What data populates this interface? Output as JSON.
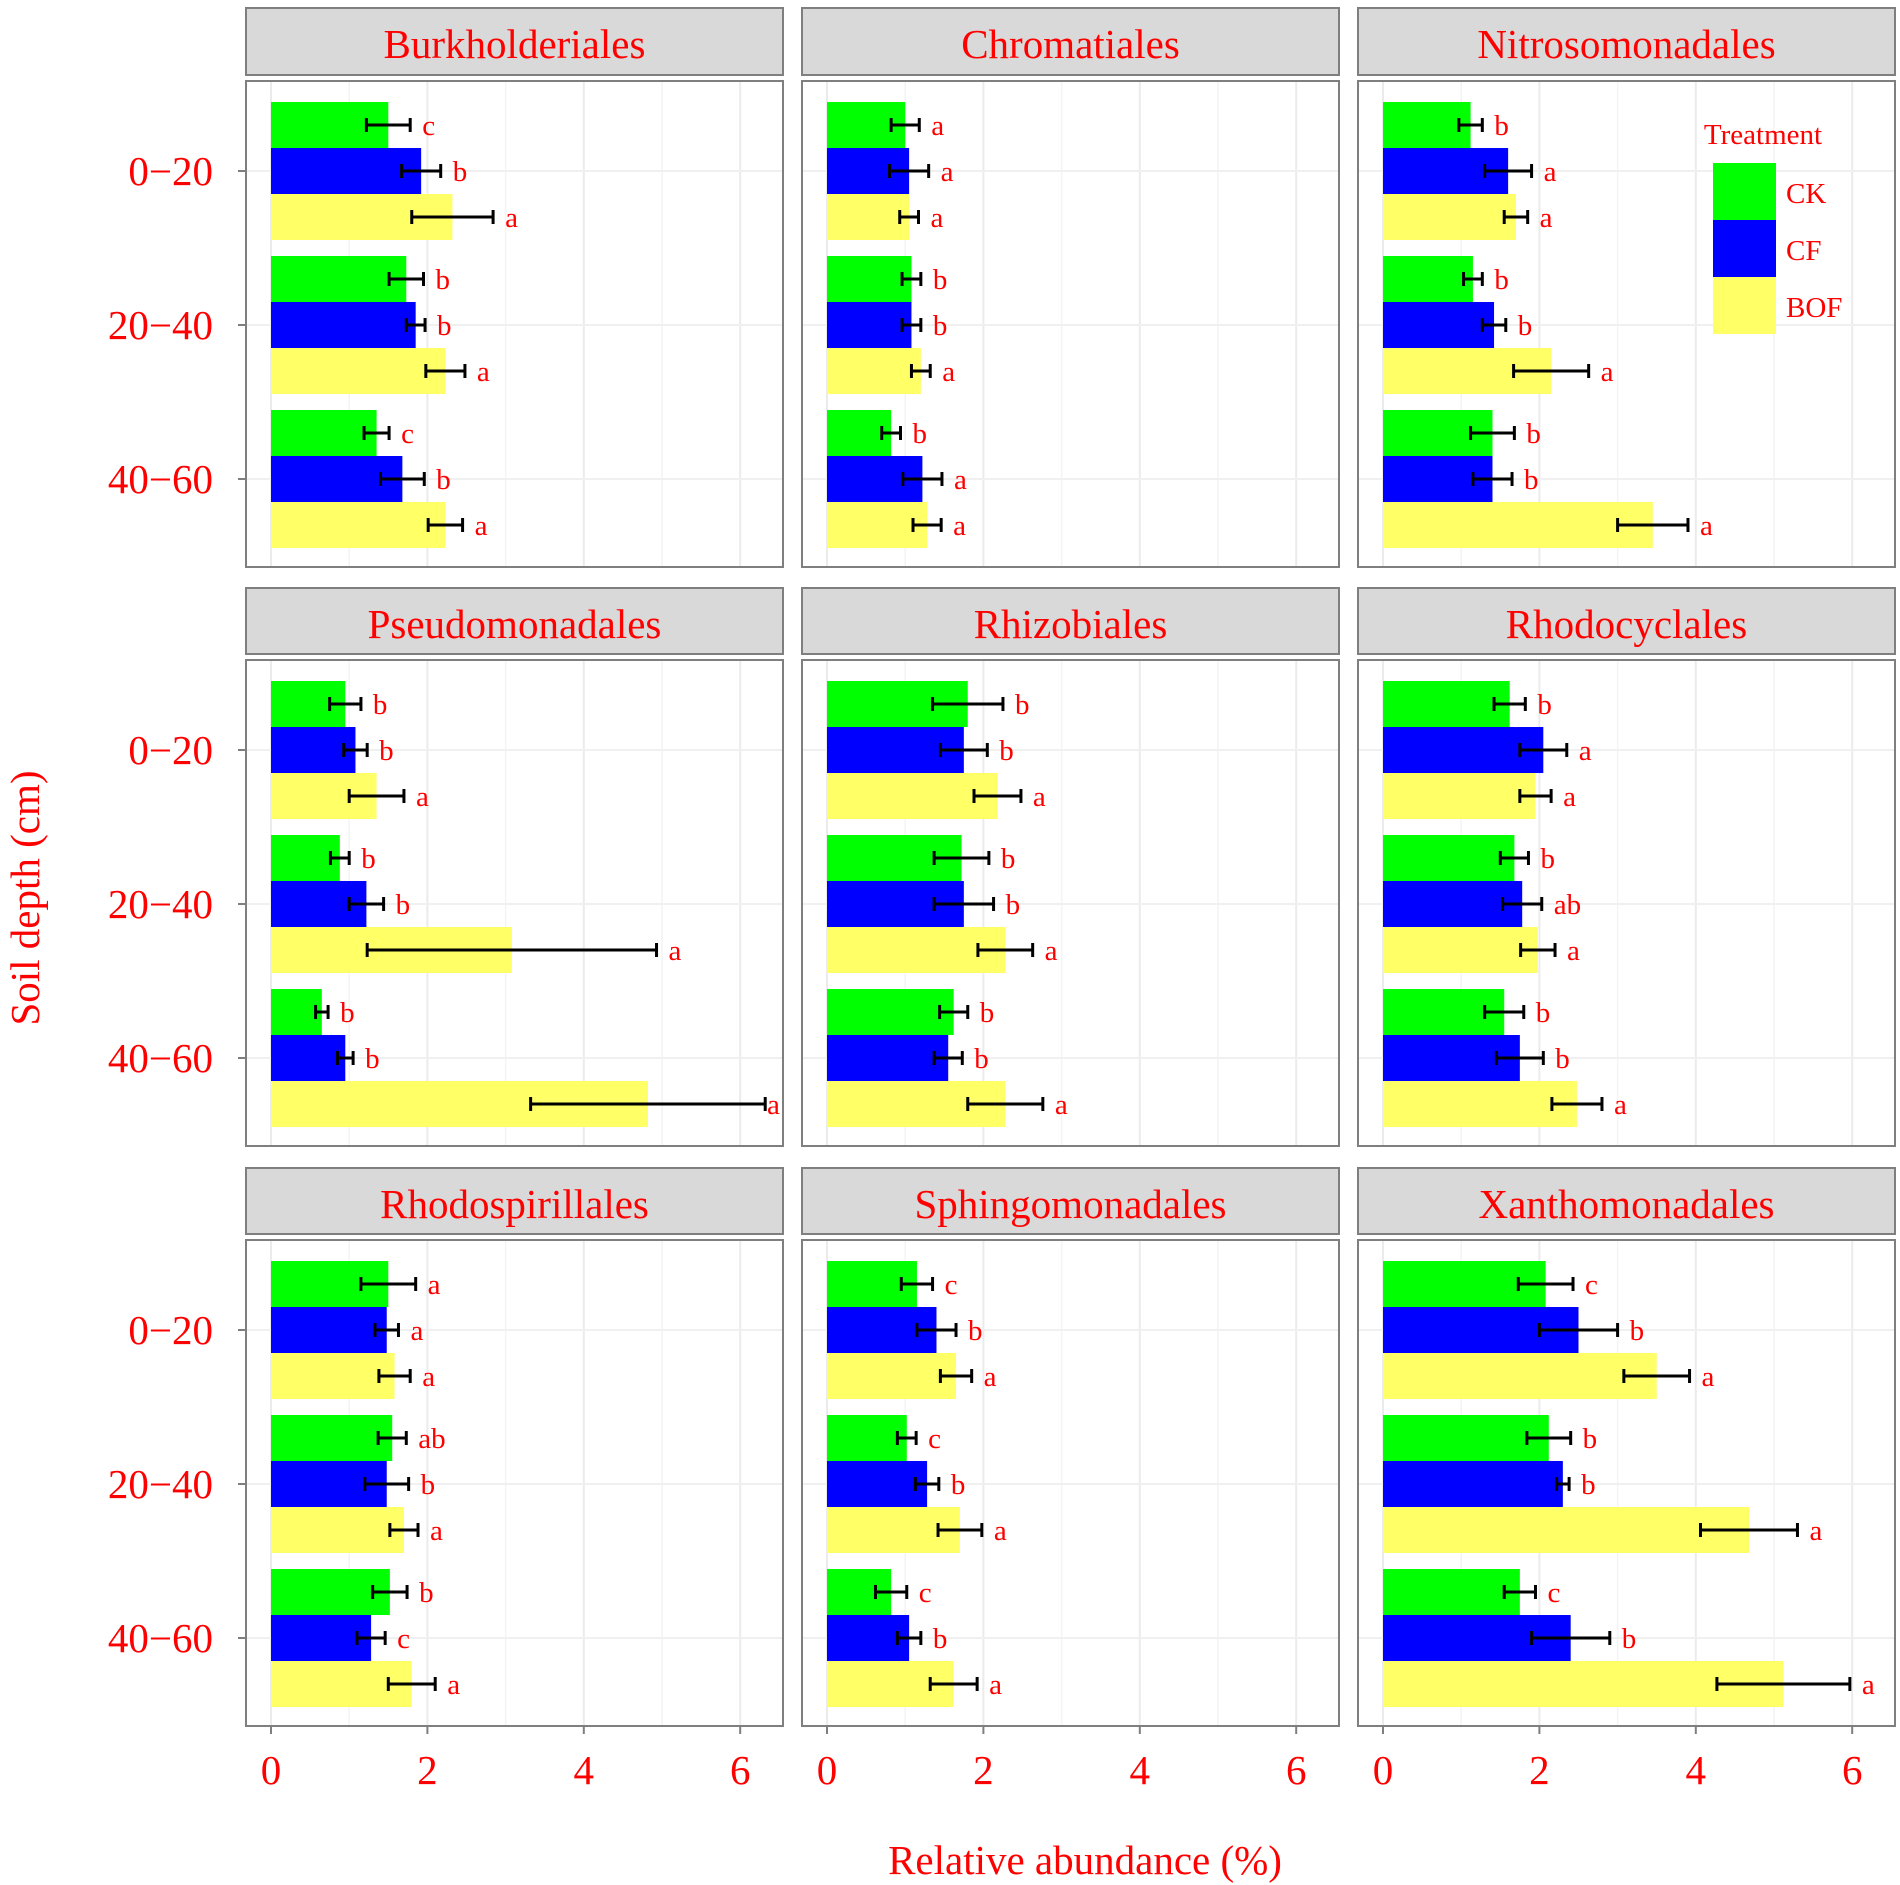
{
  "chart_data": {
    "type": "bar",
    "orientation": "horizontal",
    "layout": "facet-grid 3x3",
    "xlabel": "Relative abundance (%)",
    "ylabel": "Soil depth (cm)",
    "xlim": [
      0,
      6.5
    ],
    "xticks": [
      0,
      2,
      4,
      6
    ],
    "depths": [
      "0−20",
      "20−40",
      "40−60"
    ],
    "legend": {
      "title": "Treatment",
      "position": "top-right, inside Nitrosomonadales panel",
      "entries": [
        {
          "name": "CK",
          "color": "#00ff00"
        },
        {
          "name": "CF",
          "color": "#0000ff"
        },
        {
          "name": "BOF",
          "color": "#ffff66"
        }
      ]
    },
    "colors": {
      "text": "#ff0000",
      "strip_bg": "#d9d9d9",
      "grid": "#ebebeb",
      "frame": "#7f7f7f",
      "error_bar": "#000000"
    },
    "panels": [
      {
        "title": "Burkholderiales",
        "groups": [
          {
            "depth": "0−20",
            "bars": [
              {
                "t": "CK",
                "v": 1.5,
                "e": 0.28,
                "l": "c"
              },
              {
                "t": "CF",
                "v": 1.92,
                "e": 0.25,
                "l": "b"
              },
              {
                "t": "BOF",
                "v": 2.32,
                "e": 0.52,
                "l": "a"
              }
            ]
          },
          {
            "depth": "20−40",
            "bars": [
              {
                "t": "CK",
                "v": 1.73,
                "e": 0.22,
                "l": "b"
              },
              {
                "t": "CF",
                "v": 1.85,
                "e": 0.12,
                "l": "b"
              },
              {
                "t": "BOF",
                "v": 2.23,
                "e": 0.25,
                "l": "a"
              }
            ]
          },
          {
            "depth": "40−60",
            "bars": [
              {
                "t": "CK",
                "v": 1.35,
                "e": 0.16,
                "l": "c"
              },
              {
                "t": "CF",
                "v": 1.68,
                "e": 0.28,
                "l": "b"
              },
              {
                "t": "BOF",
                "v": 2.23,
                "e": 0.22,
                "l": "a"
              }
            ]
          }
        ]
      },
      {
        "title": "Chromatiales",
        "groups": [
          {
            "depth": "0−20",
            "bars": [
              {
                "t": "CK",
                "v": 1.0,
                "e": 0.18,
                "l": "a"
              },
              {
                "t": "CF",
                "v": 1.05,
                "e": 0.25,
                "l": "a"
              },
              {
                "t": "BOF",
                "v": 1.05,
                "e": 0.12,
                "l": "a"
              }
            ]
          },
          {
            "depth": "20−40",
            "bars": [
              {
                "t": "CK",
                "v": 1.08,
                "e": 0.12,
                "l": "b"
              },
              {
                "t": "CF",
                "v": 1.08,
                "e": 0.12,
                "l": "b"
              },
              {
                "t": "BOF",
                "v": 1.2,
                "e": 0.12,
                "l": "a"
              }
            ]
          },
          {
            "depth": "40−60",
            "bars": [
              {
                "t": "CK",
                "v": 0.82,
                "e": 0.12,
                "l": "b"
              },
              {
                "t": "CF",
                "v": 1.22,
                "e": 0.25,
                "l": "a"
              },
              {
                "t": "BOF",
                "v": 1.28,
                "e": 0.18,
                "l": "a"
              }
            ]
          }
        ]
      },
      {
        "title": "Nitrosomonadales",
        "groups": [
          {
            "depth": "0−20",
            "bars": [
              {
                "t": "CK",
                "v": 1.12,
                "e": 0.15,
                "l": "b"
              },
              {
                "t": "CF",
                "v": 1.6,
                "e": 0.3,
                "l": "a"
              },
              {
                "t": "BOF",
                "v": 1.7,
                "e": 0.15,
                "l": "a"
              }
            ]
          },
          {
            "depth": "20−40",
            "bars": [
              {
                "t": "CK",
                "v": 1.15,
                "e": 0.12,
                "l": "b"
              },
              {
                "t": "CF",
                "v": 1.42,
                "e": 0.15,
                "l": "b"
              },
              {
                "t": "BOF",
                "v": 2.15,
                "e": 0.48,
                "l": "a"
              }
            ]
          },
          {
            "depth": "40−60",
            "bars": [
              {
                "t": "CK",
                "v": 1.4,
                "e": 0.28,
                "l": "b"
              },
              {
                "t": "CF",
                "v": 1.4,
                "e": 0.25,
                "l": "b"
              },
              {
                "t": "BOF",
                "v": 3.45,
                "e": 0.45,
                "l": "a"
              }
            ]
          }
        ]
      },
      {
        "title": "Pseudomonadales",
        "groups": [
          {
            "depth": "0−20",
            "bars": [
              {
                "t": "CK",
                "v": 0.95,
                "e": 0.2,
                "l": "b"
              },
              {
                "t": "CF",
                "v": 1.08,
                "e": 0.15,
                "l": "b"
              },
              {
                "t": "BOF",
                "v": 1.35,
                "e": 0.35,
                "l": "a"
              }
            ]
          },
          {
            "depth": "20−40",
            "bars": [
              {
                "t": "CK",
                "v": 0.88,
                "e": 0.12,
                "l": "b"
              },
              {
                "t": "CF",
                "v": 1.22,
                "e": 0.22,
                "l": "b"
              },
              {
                "t": "BOF",
                "v": 3.08,
                "e": 1.85,
                "l": "a"
              }
            ]
          },
          {
            "depth": "40−60",
            "bars": [
              {
                "t": "CK",
                "v": 0.65,
                "e": 0.08,
                "l": "b"
              },
              {
                "t": "CF",
                "v": 0.95,
                "e": 0.1,
                "l": "b"
              },
              {
                "t": "BOF",
                "v": 4.82,
                "e": 1.5,
                "l": "a"
              }
            ]
          }
        ]
      },
      {
        "title": "Rhizobiales",
        "groups": [
          {
            "depth": "0−20",
            "bars": [
              {
                "t": "CK",
                "v": 1.8,
                "e": 0.45,
                "l": "b"
              },
              {
                "t": "CF",
                "v": 1.75,
                "e": 0.3,
                "l": "b"
              },
              {
                "t": "BOF",
                "v": 2.18,
                "e": 0.3,
                "l": "a"
              }
            ]
          },
          {
            "depth": "20−40",
            "bars": [
              {
                "t": "CK",
                "v": 1.72,
                "e": 0.35,
                "l": "b"
              },
              {
                "t": "CF",
                "v": 1.75,
                "e": 0.38,
                "l": "b"
              },
              {
                "t": "BOF",
                "v": 2.28,
                "e": 0.35,
                "l": "a"
              }
            ]
          },
          {
            "depth": "40−60",
            "bars": [
              {
                "t": "CK",
                "v": 1.62,
                "e": 0.18,
                "l": "b"
              },
              {
                "t": "CF",
                "v": 1.55,
                "e": 0.18,
                "l": "b"
              },
              {
                "t": "BOF",
                "v": 2.28,
                "e": 0.48,
                "l": "a"
              }
            ]
          }
        ]
      },
      {
        "title": "Rhodocyclales",
        "groups": [
          {
            "depth": "0−20",
            "bars": [
              {
                "t": "CK",
                "v": 1.62,
                "e": 0.2,
                "l": "b"
              },
              {
                "t": "CF",
                "v": 2.05,
                "e": 0.3,
                "l": "a"
              },
              {
                "t": "BOF",
                "v": 1.95,
                "e": 0.2,
                "l": "a"
              }
            ]
          },
          {
            "depth": "20−40",
            "bars": [
              {
                "t": "CK",
                "v": 1.68,
                "e": 0.18,
                "l": "b"
              },
              {
                "t": "CF",
                "v": 1.78,
                "e": 0.25,
                "l": "ab"
              },
              {
                "t": "BOF",
                "v": 1.98,
                "e": 0.22,
                "l": "a"
              }
            ]
          },
          {
            "depth": "40−60",
            "bars": [
              {
                "t": "CK",
                "v": 1.55,
                "e": 0.25,
                "l": "b"
              },
              {
                "t": "CF",
                "v": 1.75,
                "e": 0.3,
                "l": "b"
              },
              {
                "t": "BOF",
                "v": 2.48,
                "e": 0.32,
                "l": "a"
              }
            ]
          }
        ]
      },
      {
        "title": "Rhodospirillales",
        "groups": [
          {
            "depth": "0−20",
            "bars": [
              {
                "t": "CK",
                "v": 1.5,
                "e": 0.35,
                "l": "a"
              },
              {
                "t": "CF",
                "v": 1.48,
                "e": 0.15,
                "l": "a"
              },
              {
                "t": "BOF",
                "v": 1.58,
                "e": 0.2,
                "l": "a"
              }
            ]
          },
          {
            "depth": "20−40",
            "bars": [
              {
                "t": "CK",
                "v": 1.55,
                "e": 0.18,
                "l": "ab"
              },
              {
                "t": "CF",
                "v": 1.48,
                "e": 0.28,
                "l": "b"
              },
              {
                "t": "BOF",
                "v": 1.7,
                "e": 0.18,
                "l": "a"
              }
            ]
          },
          {
            "depth": "40−60",
            "bars": [
              {
                "t": "CK",
                "v": 1.52,
                "e": 0.22,
                "l": "b"
              },
              {
                "t": "CF",
                "v": 1.28,
                "e": 0.18,
                "l": "c"
              },
              {
                "t": "BOF",
                "v": 1.8,
                "e": 0.3,
                "l": "a"
              }
            ]
          }
        ]
      },
      {
        "title": "Sphingomonadales",
        "groups": [
          {
            "depth": "0−20",
            "bars": [
              {
                "t": "CK",
                "v": 1.15,
                "e": 0.2,
                "l": "c"
              },
              {
                "t": "CF",
                "v": 1.4,
                "e": 0.25,
                "l": "b"
              },
              {
                "t": "BOF",
                "v": 1.65,
                "e": 0.2,
                "l": "a"
              }
            ]
          },
          {
            "depth": "20−40",
            "bars": [
              {
                "t": "CK",
                "v": 1.02,
                "e": 0.12,
                "l": "c"
              },
              {
                "t": "CF",
                "v": 1.28,
                "e": 0.15,
                "l": "b"
              },
              {
                "t": "BOF",
                "v": 1.7,
                "e": 0.28,
                "l": "a"
              }
            ]
          },
          {
            "depth": "40−60",
            "bars": [
              {
                "t": "CK",
                "v": 0.82,
                "e": 0.2,
                "l": "c"
              },
              {
                "t": "CF",
                "v": 1.05,
                "e": 0.15,
                "l": "b"
              },
              {
                "t": "BOF",
                "v": 1.62,
                "e": 0.3,
                "l": "a"
              }
            ]
          }
        ]
      },
      {
        "title": "Xanthomonadales",
        "groups": [
          {
            "depth": "0−20",
            "bars": [
              {
                "t": "CK",
                "v": 2.08,
                "e": 0.35,
                "l": "c"
              },
              {
                "t": "CF",
                "v": 2.5,
                "e": 0.5,
                "l": "b"
              },
              {
                "t": "BOF",
                "v": 3.5,
                "e": 0.42,
                "l": "a"
              }
            ]
          },
          {
            "depth": "20−40",
            "bars": [
              {
                "t": "CK",
                "v": 2.12,
                "e": 0.28,
                "l": "b"
              },
              {
                "t": "CF",
                "v": 2.3,
                "e": 0.08,
                "l": "b"
              },
              {
                "t": "BOF",
                "v": 4.68,
                "e": 0.62,
                "l": "a"
              }
            ]
          },
          {
            "depth": "40−60",
            "bars": [
              {
                "t": "CK",
                "v": 1.75,
                "e": 0.2,
                "l": "c"
              },
              {
                "t": "CF",
                "v": 2.4,
                "e": 0.5,
                "l": "b"
              },
              {
                "t": "BOF",
                "v": 5.12,
                "e": 0.85,
                "l": "a"
              }
            ]
          }
        ]
      }
    ]
  }
}
